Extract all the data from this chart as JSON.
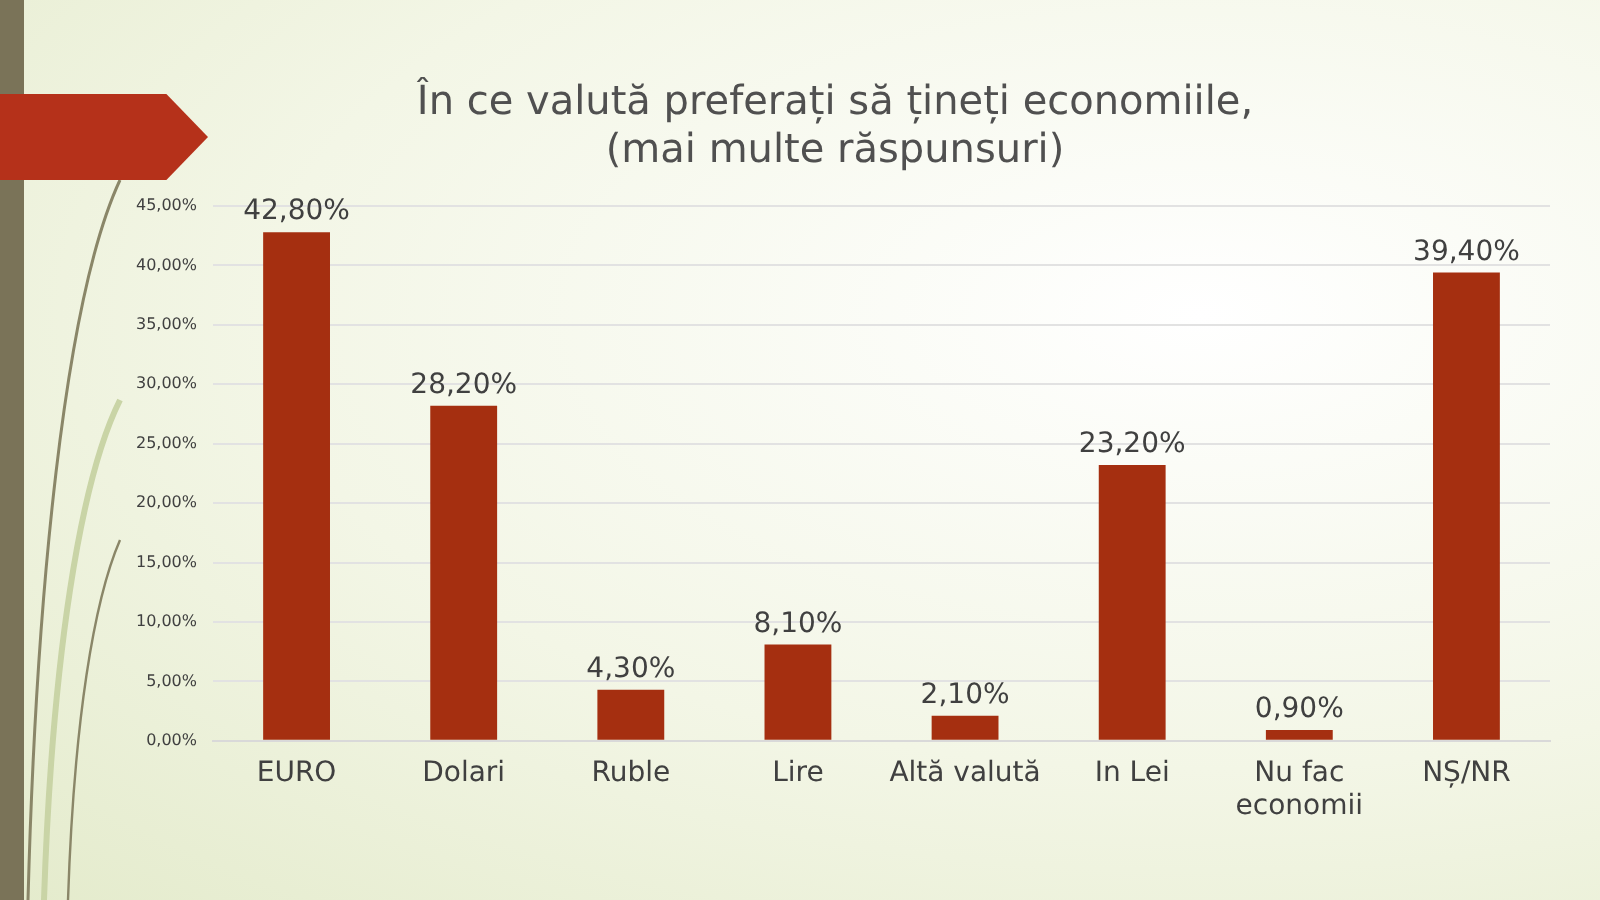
{
  "chart_data": {
    "type": "bar",
    "title": "În ce valută preferați să țineți economiile,\n(mai multe răspunsuri)",
    "categories": [
      "EURO",
      "Dolari",
      "Ruble",
      "Lire",
      "Altă valută",
      "In Lei",
      "Nu fac economii",
      "NȘ/NR"
    ],
    "values": [
      42.8,
      28.2,
      4.3,
      8.1,
      2.1,
      23.2,
      0.9,
      39.4
    ],
    "value_labels": [
      "42,80%",
      "28,20%",
      "4,30%",
      "8,10%",
      "2,10%",
      "23,20%",
      "0,90%",
      "39,40%"
    ],
    "color": "#a52f10",
    "ylim": [
      0,
      45
    ],
    "yticks": [
      {
        "value": 0,
        "label": "0,00%"
      },
      {
        "value": 5,
        "label": "5,00%"
      },
      {
        "value": 10,
        "label": "10,00%"
      },
      {
        "value": 15,
        "label": "15,00%"
      },
      {
        "value": 20,
        "label": "20,00%"
      },
      {
        "value": 25,
        "label": "25,00%"
      },
      {
        "value": 30,
        "label": "30,00%"
      },
      {
        "value": 35,
        "label": "35,00%"
      },
      {
        "value": 40,
        "label": "40,00%"
      },
      {
        "value": 45,
        "label": "45,00%"
      }
    ],
    "grid": "y",
    "legend": false
  }
}
